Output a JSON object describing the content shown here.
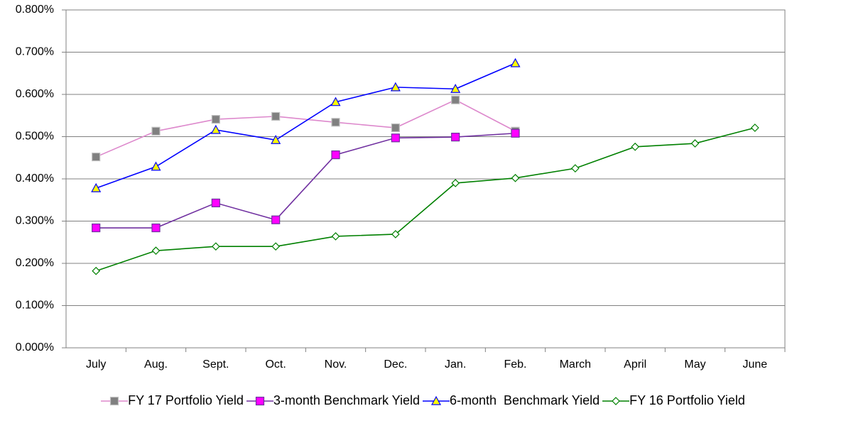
{
  "chart_data": {
    "type": "line",
    "categories": [
      "July",
      "Aug.",
      "Sept.",
      "Oct.",
      "Nov.",
      "Dec.",
      "Jan.",
      "Feb.",
      "March",
      "April",
      "May",
      "June"
    ],
    "series": [
      {
        "name": "FY 17 Portfolio Yield",
        "color": "#dd88cc",
        "marker": "square",
        "marker_fill": "#808080",
        "values": [
          0.452,
          0.513,
          0.541,
          0.548,
          0.534,
          0.521,
          0.587,
          0.513,
          null,
          null,
          null,
          null
        ]
      },
      {
        "name": "3-month Benchmark Yield",
        "color": "#7030a0",
        "marker": "square",
        "marker_fill": "#ff00ff",
        "values": [
          0.284,
          0.284,
          0.343,
          0.303,
          0.457,
          0.497,
          0.499,
          0.508,
          null,
          null,
          null,
          null
        ]
      },
      {
        "name": "6-month  Benchmark Yield",
        "color": "#0000ff",
        "marker": "triangle",
        "marker_fill": "#ffff00",
        "values": [
          0.378,
          0.429,
          0.516,
          0.492,
          0.582,
          0.617,
          0.613,
          0.674,
          null,
          null,
          null,
          null
        ]
      },
      {
        "name": "FY 16 Portfolio Yield",
        "color": "#008000",
        "marker": "diamond",
        "marker_fill": "#ffffff",
        "values": [
          0.182,
          0.23,
          0.24,
          0.24,
          0.264,
          0.269,
          0.39,
          0.402,
          0.425,
          0.476,
          0.484,
          0.521
        ]
      }
    ],
    "ylim": [
      0,
      0.8
    ],
    "yticks": [
      {
        "value": 0,
        "label": "0.000%"
      },
      {
        "value": 0.1,
        "label": "0.100%"
      },
      {
        "value": 0.2,
        "label": "0.200%"
      },
      {
        "value": 0.3,
        "label": "0.300%"
      },
      {
        "value": 0.4,
        "label": "0.400%"
      },
      {
        "value": 0.5,
        "label": "0.500%"
      },
      {
        "value": 0.6,
        "label": "0.600%"
      },
      {
        "value": 0.7,
        "label": "0.700%"
      },
      {
        "value": 0.8,
        "label": "0.800%"
      }
    ],
    "grid": true
  }
}
